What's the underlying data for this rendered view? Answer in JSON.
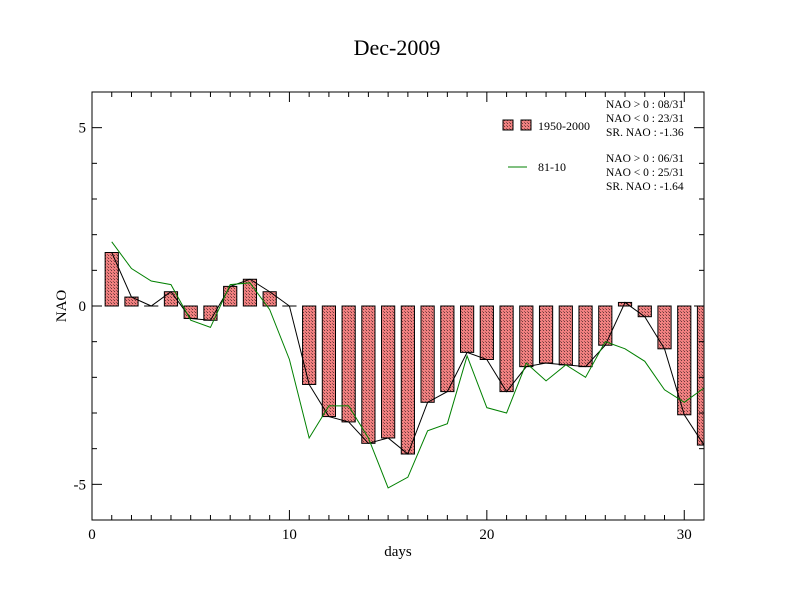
{
  "chart_data": {
    "type": "bar",
    "title": "Dec-2009",
    "xlabel": "days",
    "ylabel": "NAO",
    "xlim": [
      0,
      31
    ],
    "ylim": [
      -6,
      6
    ],
    "x_ticks": [
      0,
      10,
      20,
      30
    ],
    "x_tick_labels": [
      "0",
      "10",
      "20",
      "30"
    ],
    "y_ticks": [
      -5,
      0,
      5
    ],
    "y_tick_labels": [
      "-5",
      "0",
      "5"
    ],
    "grid": false,
    "legend_placement": "top-right",
    "x": [
      1,
      2,
      3,
      4,
      5,
      6,
      7,
      8,
      9,
      10,
      11,
      12,
      13,
      14,
      15,
      16,
      17,
      18,
      19,
      20,
      21,
      22,
      23,
      24,
      25,
      26,
      27,
      28,
      29,
      30,
      31
    ],
    "series": [
      {
        "name": "1950-2000",
        "kind": "bar",
        "color": "#f08080",
        "edge_color": "#000000",
        "values": [
          1.5,
          0.25,
          0.0,
          0.4,
          -0.35,
          -0.4,
          0.55,
          0.75,
          0.4,
          0.0,
          -2.2,
          -3.1,
          -3.25,
          -3.85,
          -3.7,
          -4.15,
          -2.7,
          -2.4,
          -1.3,
          -1.5,
          -2.4,
          -1.7,
          -1.6,
          -1.65,
          -1.7,
          -1.1,
          0.1,
          -0.3,
          -1.2,
          -3.05,
          -3.9
        ]
      },
      {
        "name": "81-10",
        "kind": "line",
        "color": "#008000",
        "values": [
          1.8,
          1.05,
          0.7,
          0.6,
          -0.4,
          -0.6,
          0.6,
          0.65,
          -0.1,
          -1.5,
          -3.7,
          -2.8,
          -2.8,
          -3.7,
          -5.1,
          -4.8,
          -3.5,
          -3.3,
          -1.4,
          -2.85,
          -3.0,
          -1.6,
          -2.1,
          -1.65,
          -2.0,
          -1.0,
          -1.2,
          -1.55,
          -2.35,
          -2.7,
          -2.3
        ]
      }
    ],
    "stats": [
      {
        "series": "1950-2000",
        "lines": [
          "NAO > 0 : 08/31",
          "NAO < 0 : 23/31",
          "SR. NAO : -1.36"
        ]
      },
      {
        "series": "81-10",
        "lines": [
          "NAO > 0 : 06/31",
          "NAO < 0 : 25/31",
          "SR. NAO : -1.64"
        ]
      }
    ]
  }
}
